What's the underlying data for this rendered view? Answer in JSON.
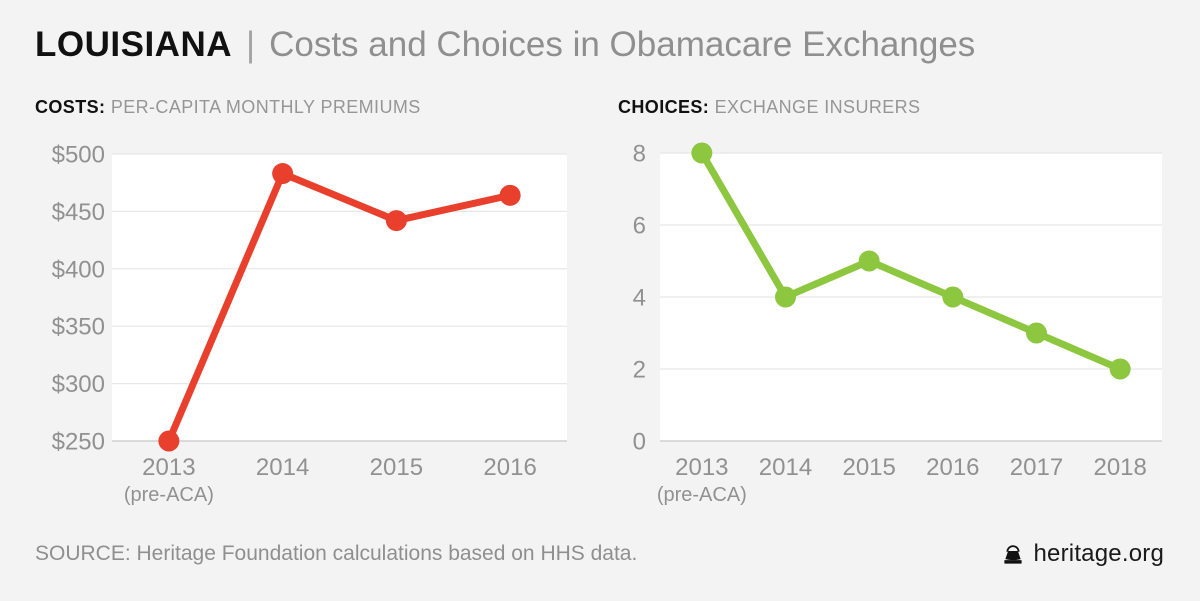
{
  "header": {
    "state": "LOUISIANA",
    "divider": "|",
    "subtitle": "Costs and Choices in Obamacare Exchanges"
  },
  "chart_data": [
    {
      "type": "line",
      "title": "COSTS:",
      "subtitle": "PER-CAPITA MONTHLY PREMIUMS",
      "categories": [
        "2013",
        "2014",
        "2015",
        "2016"
      ],
      "category_note": {
        "index": 0,
        "text": "(pre-ACA)"
      },
      "values": [
        250,
        483,
        442,
        464
      ],
      "ytick_prefix": "$",
      "yticks": [
        500,
        450,
        400,
        350,
        300,
        250
      ],
      "ylim": [
        250,
        500
      ],
      "color": "#e8402c",
      "grid": true,
      "legend": "none"
    },
    {
      "type": "line",
      "title": "CHOICES:",
      "subtitle": "EXCHANGE INSURERS",
      "categories": [
        "2013",
        "2014",
        "2015",
        "2016",
        "2017",
        "2018"
      ],
      "category_note": {
        "index": 0,
        "text": "(pre-ACA)"
      },
      "values": [
        8,
        4,
        5,
        4,
        3,
        2
      ],
      "ytick_prefix": "",
      "yticks": [
        8,
        6,
        4,
        2,
        0
      ],
      "ylim": [
        0,
        8
      ],
      "color": "#8dc63f",
      "grid": true,
      "legend": "none"
    }
  ],
  "footer": {
    "source": "SOURCE: Heritage Foundation calculations based on HHS data.",
    "brand": "heritage.org",
    "brand_icon": "liberty-bell-icon"
  },
  "colors": {
    "background": "#f3f3f3",
    "plot_background": "#ffffff",
    "gridline": "#e7e7e7",
    "axis_line": "#cfcfcf",
    "tick_text": "#919191",
    "costs_line": "#e8402c",
    "choices_line": "#8dc63f"
  }
}
